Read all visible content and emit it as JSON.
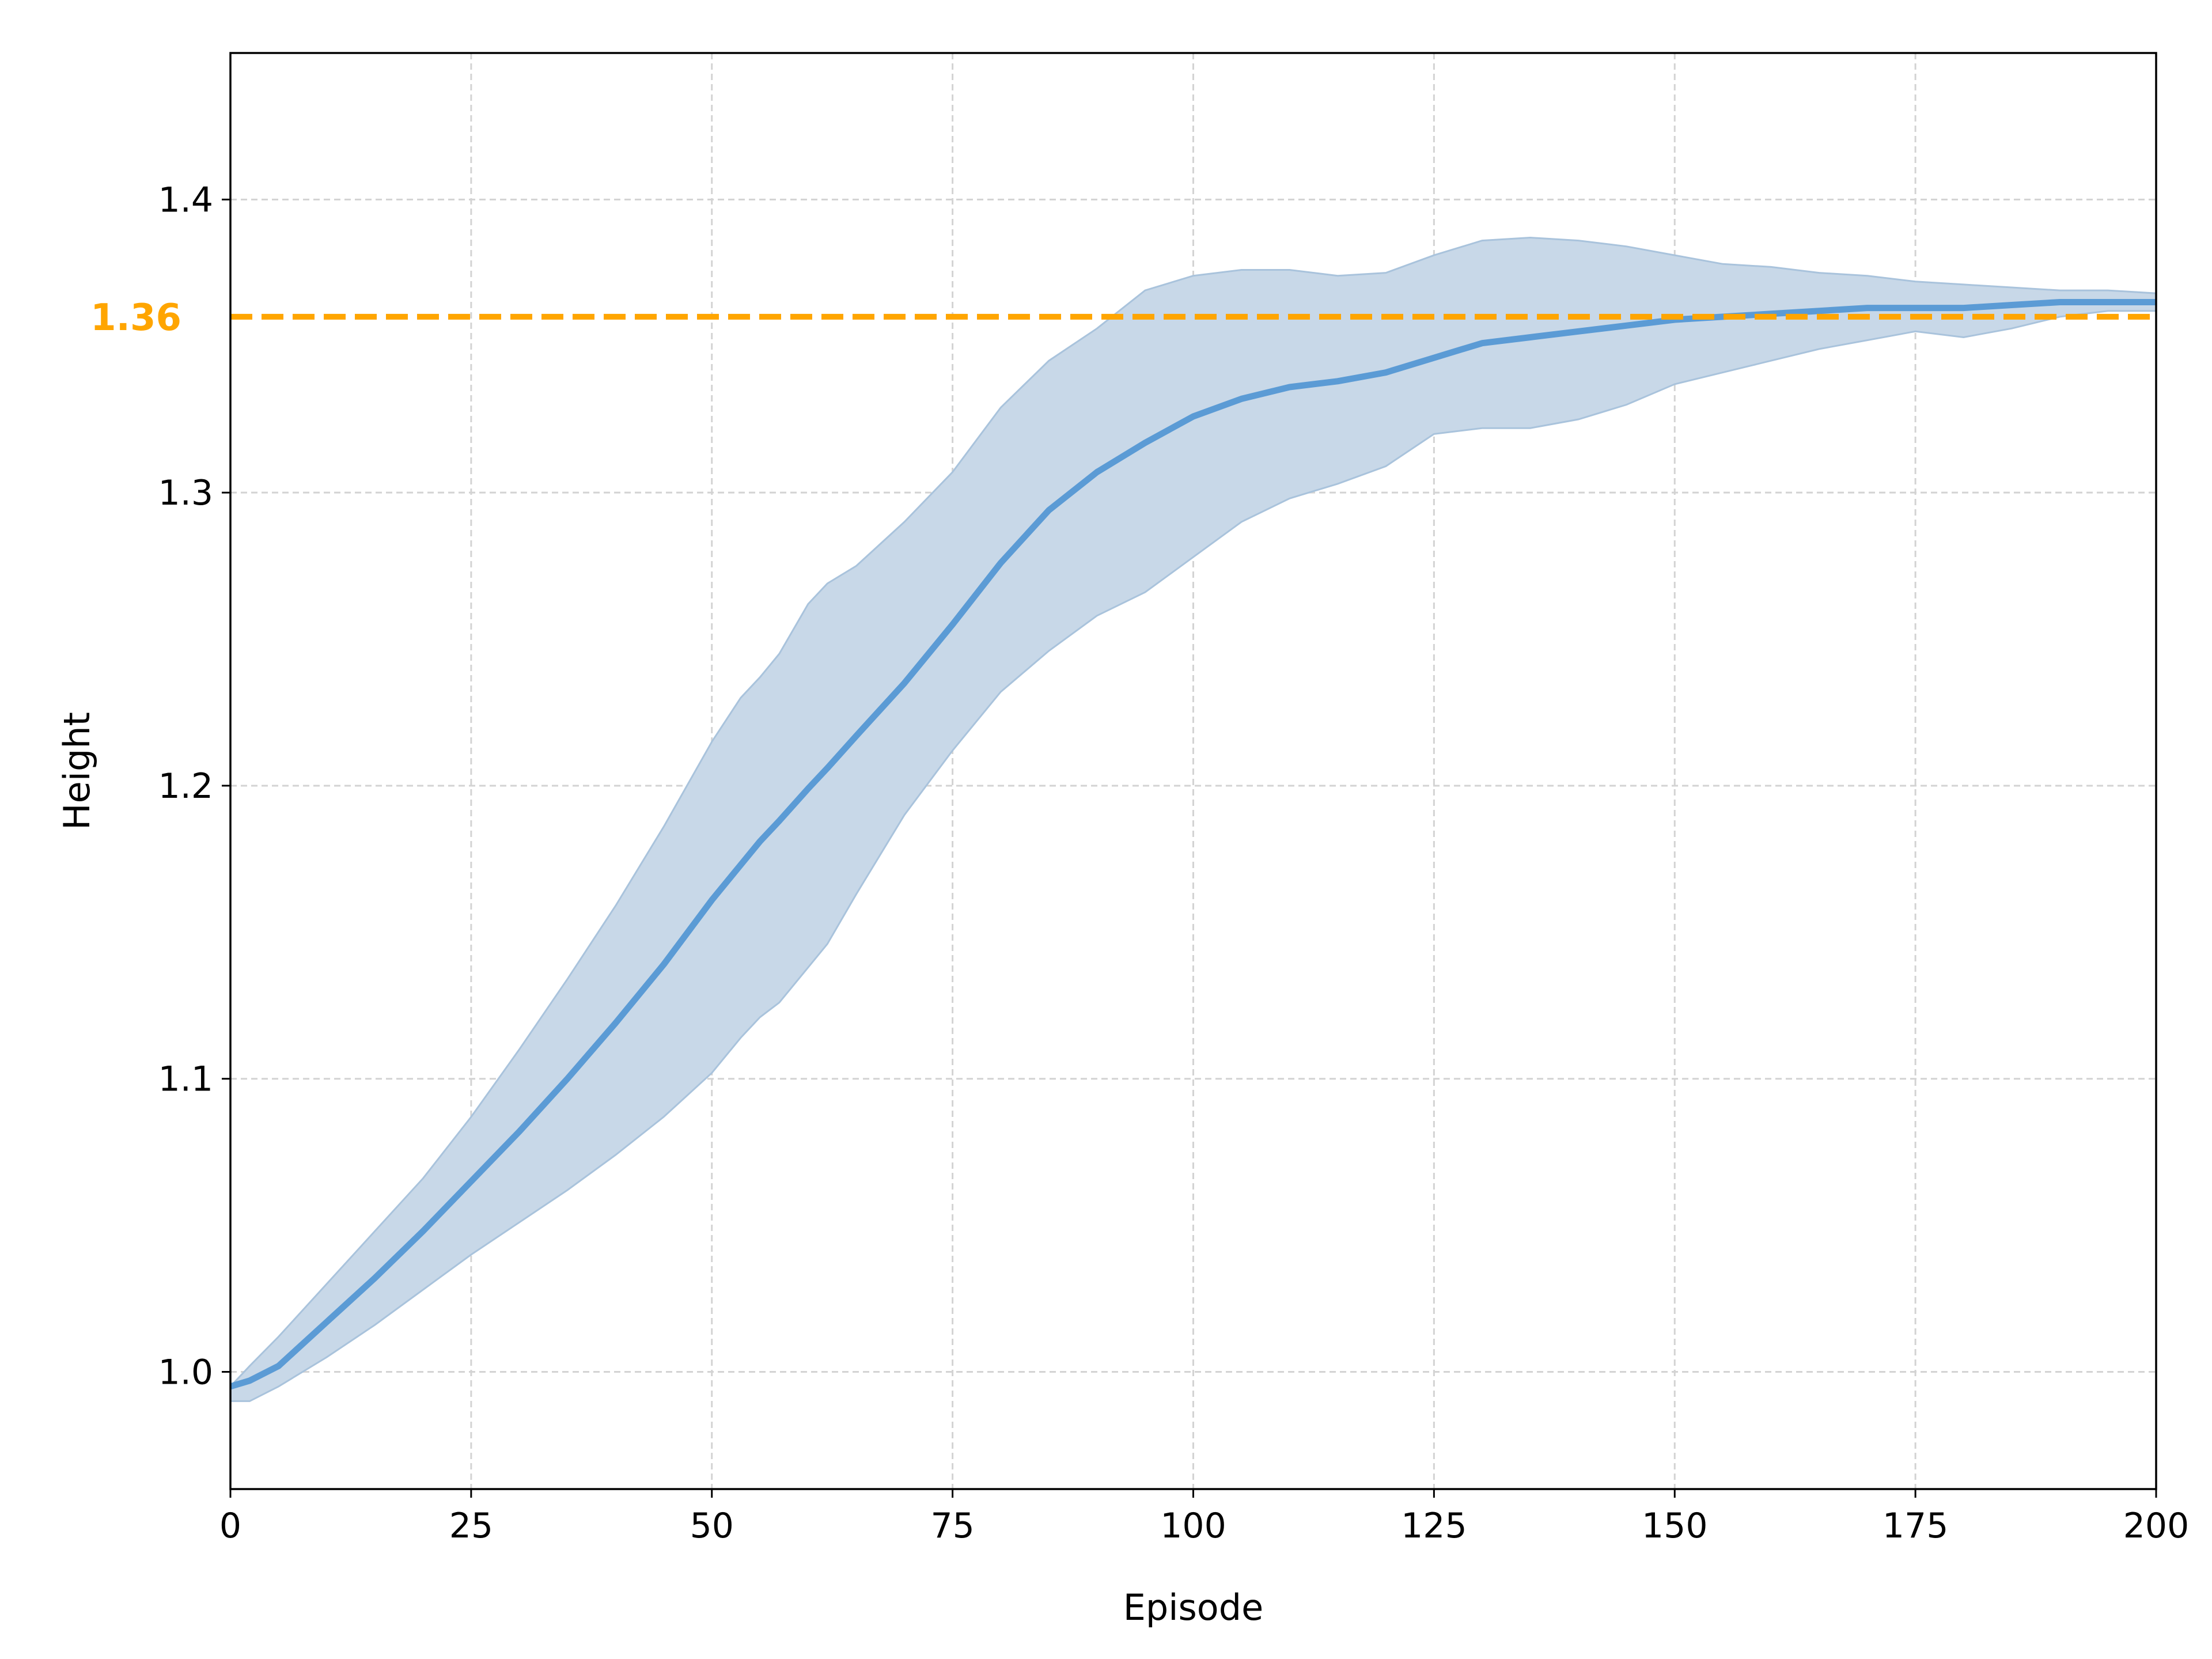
{
  "chart_data": {
    "type": "line",
    "xlabel": "Episode",
    "ylabel": "Height",
    "xlim": [
      0,
      200
    ],
    "ylim": [
      0.96,
      1.45
    ],
    "xticks": [
      0,
      25,
      50,
      75,
      100,
      125,
      150,
      175,
      200
    ],
    "xtick_labels": [
      "0",
      "25",
      "50",
      "75",
      "100",
      "125",
      "150",
      "175",
      "200"
    ],
    "yticks": [
      1.0,
      1.1,
      1.2,
      1.3,
      1.4
    ],
    "ytick_labels": [
      "1.0",
      "1.1",
      "1.2",
      "1.3",
      "1.4"
    ],
    "grid": true,
    "reference_line": {
      "y": 1.36,
      "label": "1.36",
      "color": "#ffa500",
      "style": "dashed"
    },
    "series": [
      {
        "color": "#5b9bd5",
        "band_color": "#c8d8e8",
        "x": [
          0,
          2,
          5,
          10,
          15,
          20,
          25,
          30,
          35,
          40,
          45,
          50,
          53,
          55,
          57,
          60,
          62,
          65,
          70,
          75,
          80,
          85,
          90,
          95,
          100,
          105,
          110,
          115,
          120,
          125,
          130,
          135,
          140,
          145,
          150,
          155,
          160,
          165,
          170,
          175,
          180,
          185,
          190,
          195,
          200
        ],
        "y": [
          0.995,
          0.997,
          1.002,
          1.017,
          1.032,
          1.048,
          1.065,
          1.082,
          1.1,
          1.119,
          1.139,
          1.161,
          1.173,
          1.181,
          1.188,
          1.199,
          1.206,
          1.217,
          1.235,
          1.255,
          1.276,
          1.294,
          1.307,
          1.317,
          1.326,
          1.332,
          1.336,
          1.338,
          1.341,
          1.346,
          1.351,
          1.353,
          1.355,
          1.357,
          1.359,
          1.36,
          1.361,
          1.362,
          1.363,
          1.363,
          1.363,
          1.364,
          1.365,
          1.365,
          1.365
        ],
        "lower": [
          0.99,
          0.99,
          0.995,
          1.005,
          1.016,
          1.028,
          1.04,
          1.051,
          1.062,
          1.074,
          1.087,
          1.102,
          1.114,
          1.121,
          1.126,
          1.138,
          1.146,
          1.163,
          1.19,
          1.212,
          1.232,
          1.246,
          1.258,
          1.266,
          1.278,
          1.29,
          1.298,
          1.303,
          1.309,
          1.32,
          1.322,
          1.322,
          1.325,
          1.33,
          1.337,
          1.341,
          1.345,
          1.349,
          1.352,
          1.355,
          1.353,
          1.356,
          1.36,
          1.362,
          1.362
        ],
        "upper": [
          0.995,
          1.002,
          1.012,
          1.03,
          1.048,
          1.066,
          1.087,
          1.11,
          1.134,
          1.159,
          1.186,
          1.215,
          1.23,
          1.237,
          1.245,
          1.262,
          1.269,
          1.275,
          1.29,
          1.307,
          1.329,
          1.345,
          1.356,
          1.369,
          1.374,
          1.376,
          1.376,
          1.374,
          1.375,
          1.381,
          1.386,
          1.387,
          1.386,
          1.384,
          1.381,
          1.378,
          1.377,
          1.375,
          1.374,
          1.372,
          1.371,
          1.37,
          1.369,
          1.369,
          1.368
        ]
      }
    ]
  }
}
